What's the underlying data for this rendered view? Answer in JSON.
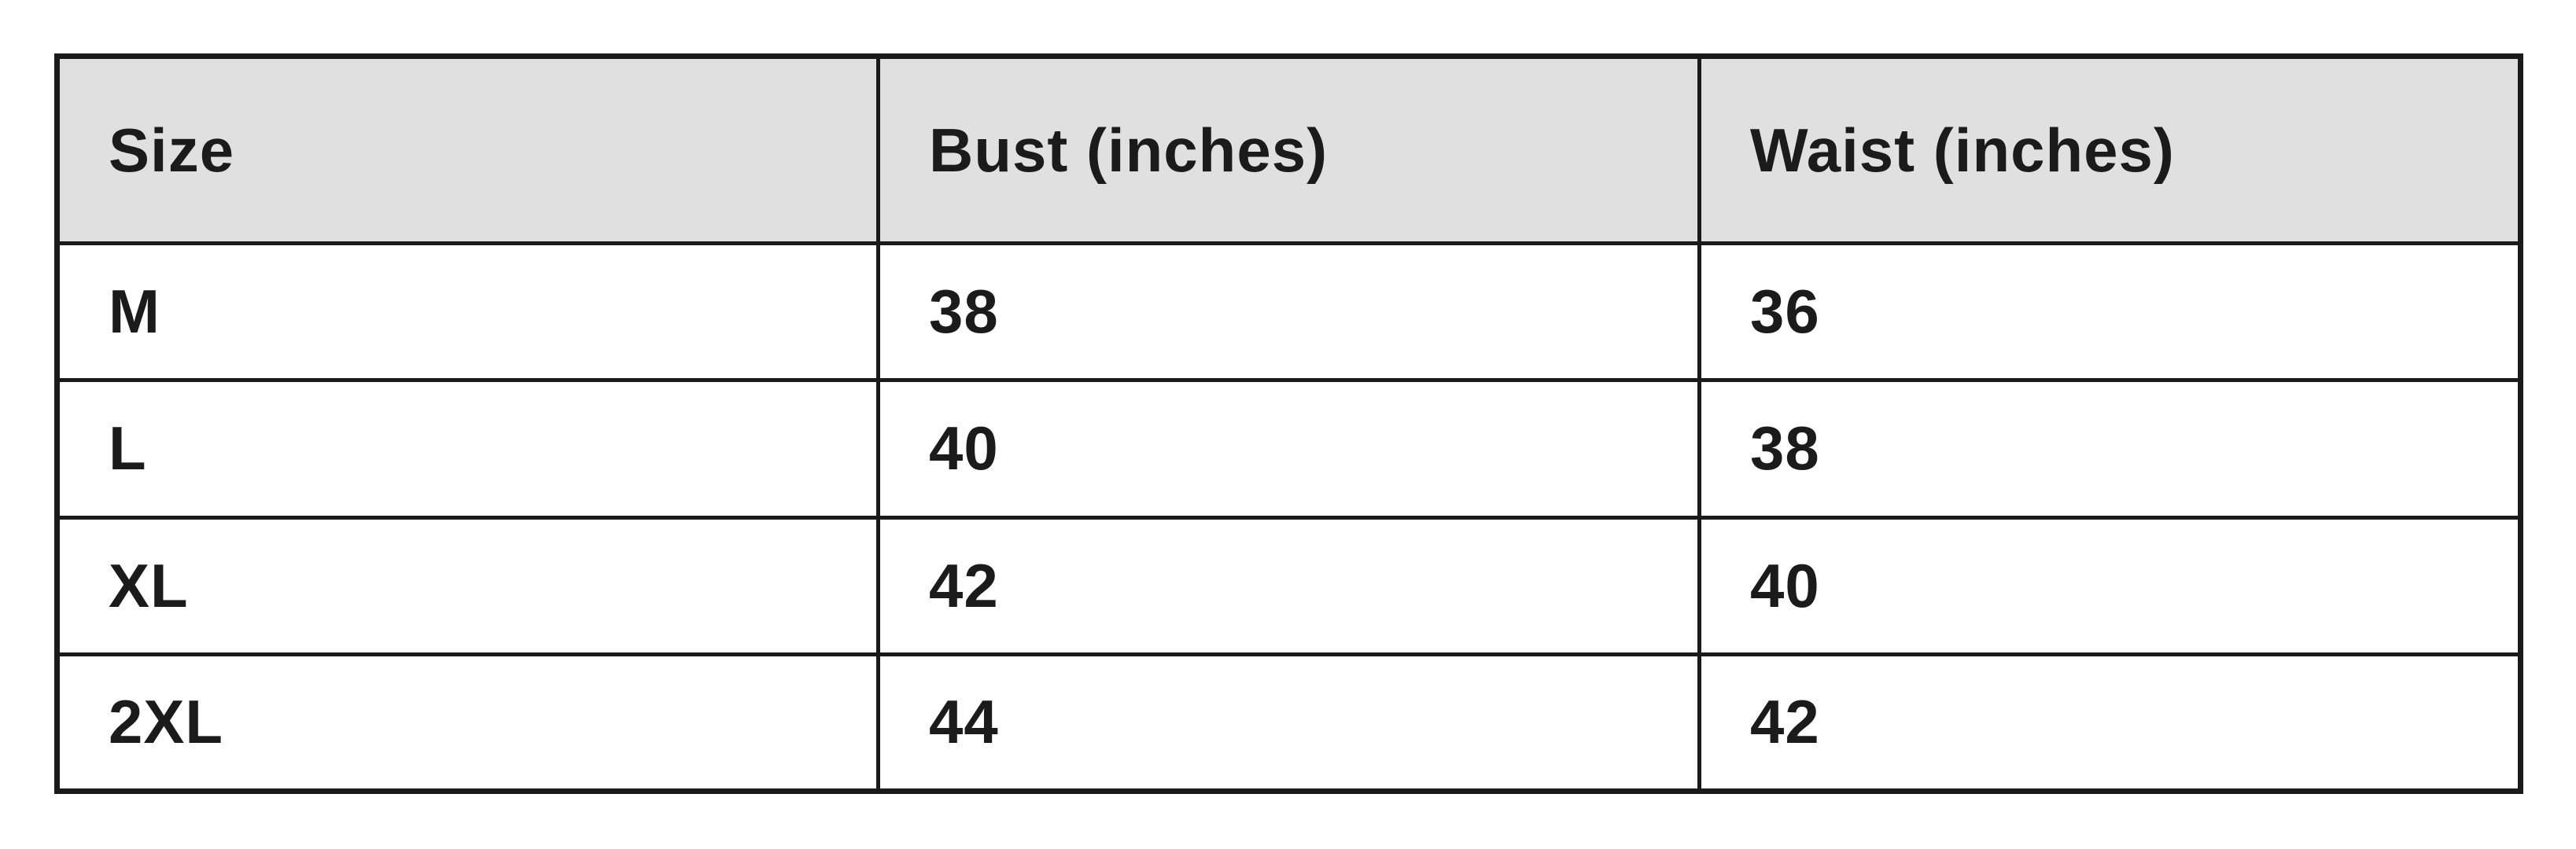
{
  "colors": {
    "page_bg": "#ffffff",
    "header_bg": "#e0e0e0",
    "cell_bg": "#fefefe",
    "border": "#1a1a1a",
    "text": "#1b1b1b"
  },
  "chart_data": {
    "type": "table",
    "columns": [
      "Size",
      "Bust (inches)",
      "Waist (inches)"
    ],
    "rows": [
      [
        "M",
        "38",
        "36"
      ],
      [
        "L",
        "40",
        "38"
      ],
      [
        "XL",
        "42",
        "40"
      ],
      [
        "2XL",
        "44",
        "42"
      ]
    ]
  }
}
